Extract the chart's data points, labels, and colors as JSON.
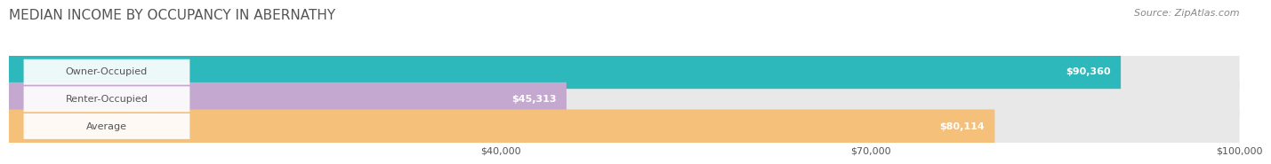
{
  "title": "MEDIAN INCOME BY OCCUPANCY IN ABERNATHY",
  "source": "Source: ZipAtlas.com",
  "categories": [
    "Owner-Occupied",
    "Renter-Occupied",
    "Average"
  ],
  "values": [
    90360,
    45313,
    80114
  ],
  "bar_colors": [
    "#2DB8BB",
    "#C4A8D0",
    "#F5C07A"
  ],
  "bar_bg_color": "#E8E8E8",
  "label_bg_color": "#FFFFFF",
  "value_labels": [
    "$90,360",
    "$45,313",
    "$80,114"
  ],
  "xlim": [
    0,
    100000
  ],
  "xticks": [
    40000,
    70000,
    100000
  ],
  "xtick_labels": [
    "$40,000",
    "$70,000",
    "$100,000"
  ],
  "title_fontsize": 11,
  "source_fontsize": 8,
  "label_fontsize": 8,
  "value_fontsize": 8,
  "bar_height": 0.62,
  "fig_bg_color": "#FFFFFF",
  "grid_color": "#CCCCCC",
  "text_dark": "#555555",
  "text_light": "#FFFFFF",
  "text_gray": "#888888"
}
